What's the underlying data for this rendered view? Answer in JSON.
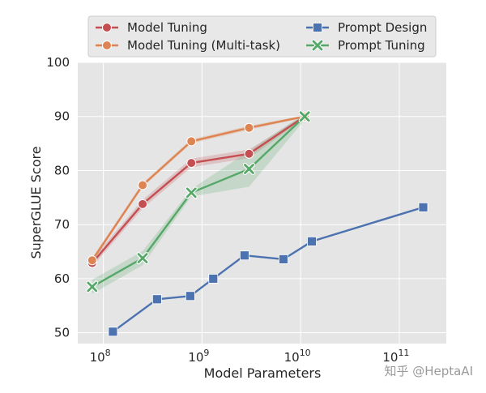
{
  "chart_data": {
    "type": "line",
    "xlabel": "Model Parameters",
    "ylabel": "SuperGLUE Score",
    "xscale": "log",
    "xlim": [
      55000000,
      300000000000
    ],
    "ylim": [
      48,
      100
    ],
    "xticks": [
      {
        "value": 100000000,
        "base": "10",
        "exp": "8"
      },
      {
        "value": 1000000000,
        "base": "10",
        "exp": "9"
      },
      {
        "value": 10000000000,
        "base": "10",
        "exp": "10"
      },
      {
        "value": 100000000000,
        "base": "10",
        "exp": "11"
      }
    ],
    "yticks": [
      "50",
      "60",
      "70",
      "80",
      "90",
      "100"
    ],
    "grid": true,
    "legend_placement": "top",
    "series": [
      {
        "name": "Model Tuning",
        "color": "#c44e52",
        "marker": "circle",
        "x": [
          77000000,
          250000000,
          780000000,
          3000000000,
          11000000000
        ],
        "y": [
          62.9,
          73.8,
          81.4,
          83.1,
          90.0
        ],
        "band": [
          [
            62.2,
            63.6
          ],
          [
            73.0,
            74.6
          ],
          [
            80.6,
            82.2
          ],
          [
            82.3,
            83.9
          ],
          [
            89.7,
            90.3
          ]
        ]
      },
      {
        "name": "Model Tuning (Multi-task)",
        "color": "#dd8452",
        "marker": "circle",
        "x": [
          77000000,
          250000000,
          780000000,
          3000000000,
          11000000000
        ],
        "y": [
          63.4,
          77.3,
          85.4,
          87.9,
          90.0
        ],
        "band": [
          [
            62.9,
            63.9
          ],
          [
            76.9,
            77.7
          ],
          [
            85.0,
            85.8
          ],
          [
            87.5,
            88.3
          ],
          [
            89.8,
            90.2
          ]
        ]
      },
      {
        "name": "Prompt Design",
        "color": "#4c72b0",
        "marker": "square",
        "x": [
          125000000,
          350000000,
          760000000,
          1300000000,
          2700000000,
          6700000000,
          13000000000,
          175000000000
        ],
        "y": [
          50.2,
          56.2,
          56.8,
          60.0,
          64.3,
          63.6,
          66.9,
          73.2
        ]
      },
      {
        "name": "Prompt Tuning",
        "color": "#55a868",
        "marker": "x",
        "x": [
          77000000,
          250000000,
          780000000,
          3000000000,
          11000000000
        ],
        "y": [
          58.5,
          63.8,
          75.9,
          80.3,
          90.0
        ],
        "band": [
          [
            57.2,
            59.8
          ],
          [
            62.5,
            65.1
          ],
          [
            75.2,
            76.6
          ],
          [
            77.0,
            83.6
          ],
          [
            89.4,
            90.6
          ]
        ]
      }
    ]
  },
  "watermark": "知乎 @HeptaAI"
}
